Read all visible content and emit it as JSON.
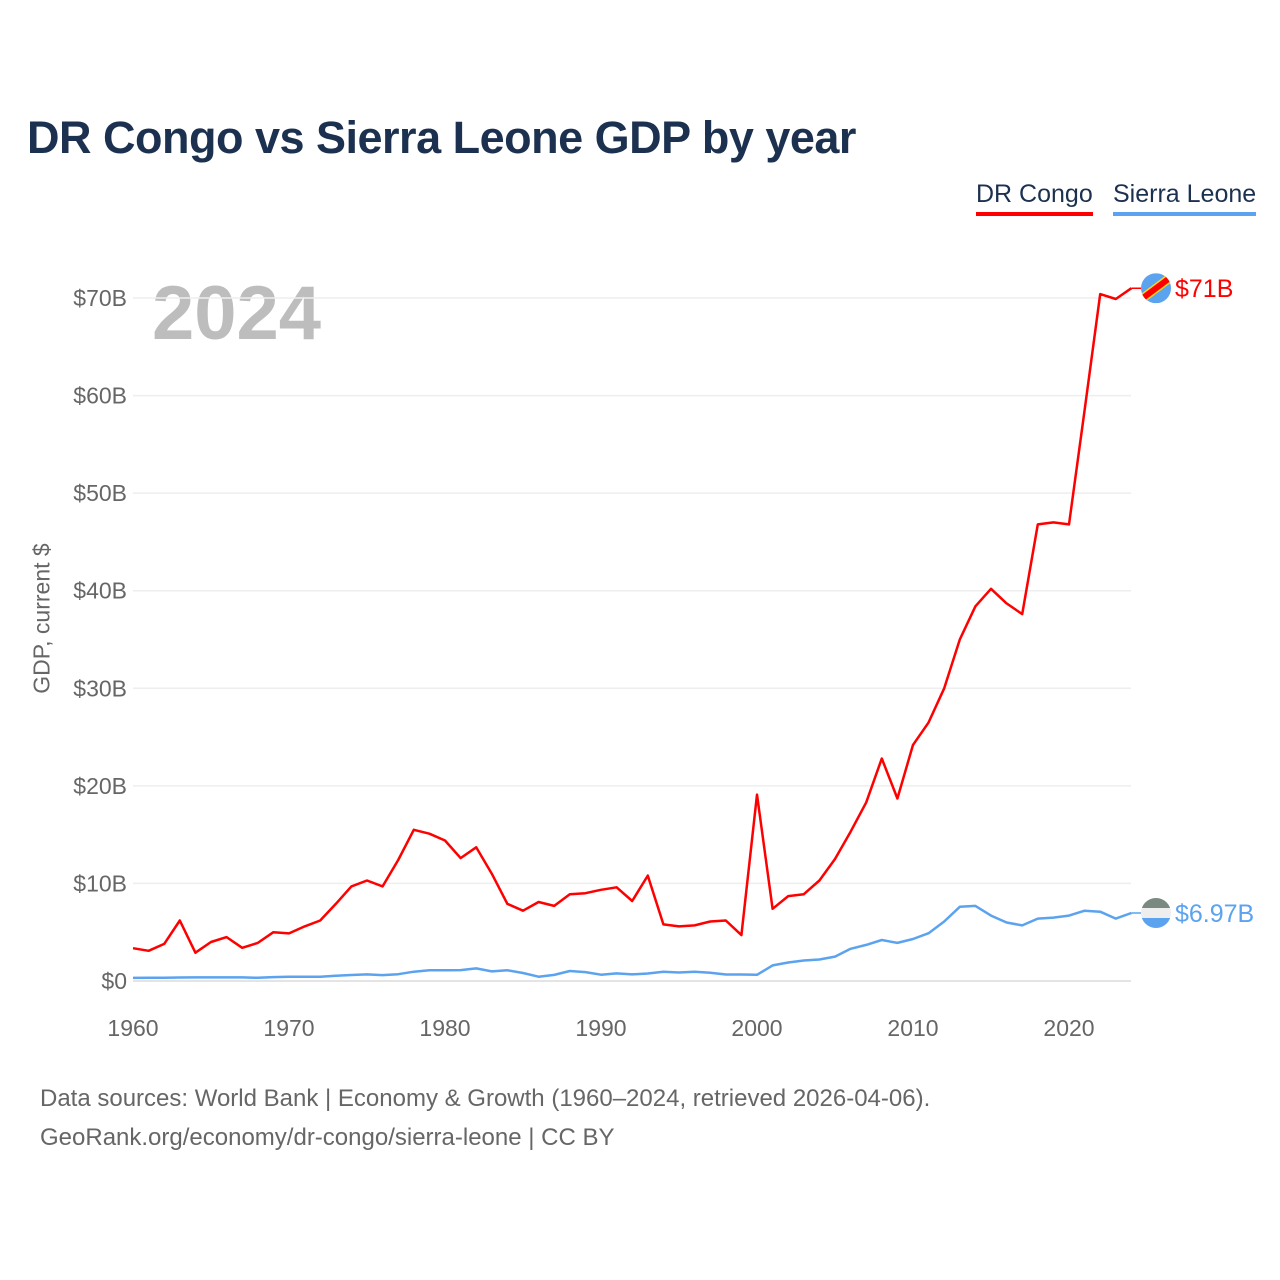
{
  "title": "DR Congo vs Sierra Leone GDP by year",
  "year_label": "2024",
  "footer": {
    "line1": "Data sources: World Bank | Economy & Growth (1960–2024, retrieved 2026-04-06).",
    "line2": "GeoRank.org/economy/dr-congo/sierra-leone | CC BY"
  },
  "chart_data": {
    "type": "line",
    "title": "DR Congo vs Sierra Leone GDP by year",
    "xlabel": "",
    "ylabel": "GDP, current $",
    "xlim": [
      1960,
      2024
    ],
    "ylim": [
      0,
      70
    ],
    "x_ticks": [
      1960,
      1970,
      1980,
      1990,
      2000,
      2010,
      2020
    ],
    "x_tick_labels": [
      "1960",
      "1970",
      "1980",
      "1990",
      "2000",
      "2010",
      "2020"
    ],
    "y_ticks": [
      0,
      10,
      20,
      30,
      40,
      50,
      60,
      70
    ],
    "y_tick_labels": [
      "$0",
      "$10B",
      "$20B",
      "$30B",
      "$40B",
      "$50B",
      "$60B",
      "$70B"
    ],
    "grid": true,
    "legend": "top-right",
    "x_start": 1960,
    "series": [
      {
        "name": "DR Congo",
        "color": "#ff0000",
        "end_label": "$71B",
        "flag": "dr-congo-flag-icon",
        "values": [
          3.36,
          3.1,
          3.8,
          6.2,
          2.9,
          4.0,
          4.5,
          3.4,
          3.9,
          5.0,
          4.88,
          5.6,
          6.2,
          7.9,
          9.7,
          10.3,
          9.7,
          12.4,
          15.5,
          15.1,
          14.4,
          12.6,
          13.7,
          11.0,
          7.9,
          7.2,
          8.1,
          7.7,
          8.9,
          9.0,
          9.35,
          9.6,
          8.2,
          10.8,
          5.8,
          5.6,
          5.7,
          6.1,
          6.2,
          4.7,
          19.1,
          7.4,
          8.7,
          8.9,
          10.3,
          12.5,
          15.3,
          18.3,
          22.8,
          18.7,
          24.2,
          26.5,
          30.0,
          35.0,
          38.4,
          40.2,
          38.7,
          37.6,
          46.8,
          47.0,
          46.8,
          58.5,
          70.4,
          69.9,
          71.0
        ]
      },
      {
        "name": "Sierra Leone",
        "color": "#5ba3ef",
        "end_label": "$6.97B",
        "flag": "sierra-leone-flag-icon",
        "values": [
          0.32,
          0.33,
          0.34,
          0.36,
          0.37,
          0.37,
          0.37,
          0.37,
          0.33,
          0.4,
          0.43,
          0.43,
          0.44,
          0.53,
          0.62,
          0.68,
          0.6,
          0.7,
          0.95,
          1.1,
          1.1,
          1.12,
          1.29,
          0.98,
          1.1,
          0.82,
          0.44,
          0.63,
          1.02,
          0.91,
          0.65,
          0.78,
          0.68,
          0.77,
          0.94,
          0.87,
          0.94,
          0.85,
          0.67,
          0.67,
          0.64,
          1.6,
          1.9,
          2.1,
          2.2,
          2.5,
          3.3,
          3.7,
          4.2,
          3.9,
          4.3,
          4.9,
          6.1,
          7.6,
          7.7,
          6.7,
          6.0,
          5.7,
          6.4,
          6.5,
          6.7,
          7.2,
          7.1,
          6.4,
          6.97
        ]
      }
    ]
  }
}
